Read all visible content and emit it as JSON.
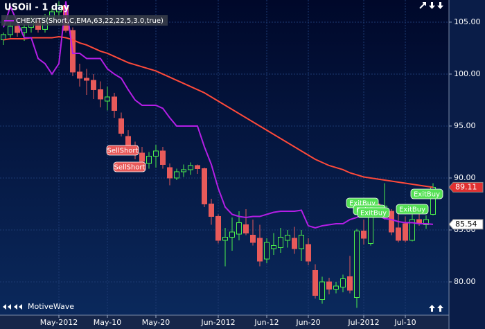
{
  "chart_data": {
    "type": "candlestick",
    "title": "USOil - 1 day",
    "branding": "MotiveWave",
    "categories": [
      null,
      null,
      null,
      null,
      null,
      null,
      null,
      null,
      "May-2012",
      null,
      null,
      null,
      null,
      null,
      null,
      "May-10",
      null,
      null,
      null,
      null,
      null,
      null,
      "May-20",
      null,
      null,
      null,
      null,
      null,
      null,
      null,
      null,
      "Jun-2012",
      null,
      null,
      null,
      null,
      null,
      null,
      "Jun-12",
      null,
      null,
      null,
      null,
      null,
      "Jun-20",
      null,
      null,
      null,
      null,
      null,
      null,
      null,
      "Jul-2012",
      null,
      null,
      null,
      null,
      null,
      "Jul-10",
      null,
      null,
      null,
      null
    ],
    "candles": {
      "open": [
        103.3,
        103.8,
        104.6,
        104.0,
        104.5,
        105.1,
        104.3,
        105.5,
        106.0,
        106.6,
        104.2,
        100.2,
        99.6,
        99.4,
        98.5,
        97.4,
        97.8,
        95.7,
        94.0,
        93.1,
        92.4,
        91.4,
        92.1,
        92.6,
        91.0,
        90.0,
        90.6,
        90.8,
        91.2,
        90.9,
        87.5,
        86.3,
        84.0,
        84.3,
        84.6,
        85.5,
        84.5,
        84.2,
        82.2,
        83.2,
        83.3,
        84.0,
        84.2,
        83.2,
        83.6,
        81.1,
        78.3,
        80.0,
        79.3,
        79.5,
        80.5,
        78.5,
        84.9,
        83.7,
        87.5,
        86.6,
        86.8,
        85.2,
        85.6,
        84.0,
        86.0,
        85.5,
        86.5
      ],
      "high": [
        104.0,
        105.2,
        105.0,
        104.8,
        105.6,
        105.4,
        105.8,
        106.3,
        107.0,
        107.0,
        104.5,
        101.0,
        100.5,
        100.0,
        99.3,
        98.8,
        98.2,
        96.3,
        94.6,
        93.5,
        93.0,
        92.5,
        93.2,
        93.0,
        91.4,
        90.9,
        91.3,
        91.5,
        91.3,
        91.0,
        88.0,
        86.5,
        85.2,
        86.2,
        86.8,
        87.0,
        86.0,
        85.5,
        84.2,
        84.7,
        85.2,
        85.0,
        85.3,
        85.0,
        84.2,
        81.7,
        80.5,
        80.4,
        80.0,
        80.7,
        82.5,
        85.1,
        86.0,
        87.1,
        88.0,
        89.5,
        87.0,
        87.3,
        86.3,
        86.5,
        87.0,
        86.4,
        89.5
      ],
      "low": [
        102.8,
        103.5,
        103.6,
        103.2,
        104.0,
        104.0,
        104.0,
        105.0,
        105.5,
        104.0,
        99.8,
        98.8,
        98.0,
        97.6,
        96.8,
        96.5,
        95.8,
        94.0,
        92.6,
        91.8,
        91.2,
        90.9,
        91.0,
        90.9,
        89.3,
        89.8,
        90.1,
        90.3,
        90.4,
        87.2,
        85.5,
        83.7,
        81.5,
        83.0,
        84.0,
        84.5,
        83.5,
        81.5,
        81.8,
        82.6,
        82.8,
        83.3,
        82.7,
        82.0,
        81.6,
        78.4,
        77.9,
        78.8,
        78.9,
        79.0,
        78.9,
        77.5,
        83.6,
        83.5,
        86.2,
        86.0,
        84.5,
        83.8,
        83.8,
        83.9,
        85.4,
        85.1,
        86.4
      ],
      "close": [
        103.8,
        104.6,
        104.0,
        104.5,
        105.1,
        104.3,
        105.5,
        106.0,
        106.6,
        104.2,
        100.2,
        99.6,
        99.4,
        98.5,
        97.6,
        97.8,
        96.5,
        94.3,
        93.1,
        92.4,
        91.6,
        92.1,
        92.6,
        91.3,
        90.0,
        90.6,
        90.8,
        91.2,
        90.9,
        87.5,
        86.3,
        84.0,
        84.3,
        84.8,
        85.7,
        84.7,
        83.8,
        82.0,
        83.8,
        83.5,
        84.3,
        84.5,
        83.2,
        84.5,
        82.0,
        78.7,
        80.0,
        79.3,
        79.6,
        80.3,
        79.2,
        84.9,
        84.2,
        86.8,
        86.6,
        87.3,
        84.8,
        84.0,
        84.0,
        86.0,
        85.6,
        86.0,
        89.1
      ]
    },
    "up_color": "#4cf04c",
    "down_color": "#e85a5a",
    "series": [
      {
        "color": "#ff4a3a",
        "values": [
          103.3,
          103.4,
          103.4,
          103.4,
          103.5,
          103.5,
          103.5,
          103.5,
          103.6,
          103.5,
          103.3,
          103.0,
          102.8,
          102.5,
          102.2,
          102.0,
          101.7,
          101.4,
          101.1,
          100.9,
          100.7,
          100.5,
          100.3,
          100.0,
          99.7,
          99.4,
          99.1,
          98.8,
          98.5,
          98.2,
          97.8,
          97.4,
          97.0,
          96.6,
          96.2,
          95.8,
          95.4,
          95.0,
          94.6,
          94.2,
          93.8,
          93.4,
          93.0,
          92.6,
          92.2,
          91.8,
          91.5,
          91.2,
          91.0,
          90.8,
          90.5,
          90.3,
          90.1,
          90.0,
          89.9,
          89.8,
          89.7,
          89.6,
          89.5,
          89.4,
          89.3,
          89.2,
          89.11
        ],
        "value_labels": [
          null,
          null,
          null,
          null,
          null,
          null,
          null,
          null,
          null,
          null,
          null,
          null,
          null,
          null,
          null,
          null,
          null,
          null,
          null,
          null,
          null,
          null,
          null,
          null,
          null,
          null,
          null,
          null,
          null,
          null,
          null,
          null,
          null,
          null,
          null,
          null,
          null,
          null,
          null,
          null,
          null,
          null,
          null,
          null,
          null,
          null,
          null,
          null,
          null,
          null,
          null,
          null,
          null,
          null,
          null,
          null,
          null,
          null,
          null,
          null,
          null,
          null,
          "89.11"
        ]
      },
      {
        "name": "CHEXITS(Short,C,EMA,63,22,22,5,3.0,true)",
        "color": "#b41ee6",
        "values": [
          104.5,
          106.5,
          105.0,
          103.5,
          103.5,
          101.5,
          101.0,
          100.0,
          101.0,
          107.0,
          102.0,
          102.0,
          101.5,
          101.5,
          101.5,
          100.5,
          100.0,
          99.6,
          98.5,
          97.5,
          97.0,
          97.0,
          97.0,
          96.7,
          95.8,
          95.0,
          95.0,
          95.0,
          95.0,
          93.0,
          91.3,
          89.0,
          87.2,
          86.5,
          86.3,
          86.2,
          86.3,
          86.3,
          86.5,
          86.7,
          86.8,
          86.8,
          86.8,
          86.9,
          85.4,
          85.2,
          85.4,
          85.5,
          85.6,
          85.6,
          86.0,
          86.2,
          86.6,
          86.4,
          86.4,
          86.1,
          86.0,
          85.8,
          85.7,
          85.7,
          85.6,
          85.6,
          85.54
        ],
        "value_labels": [
          null,
          null,
          null,
          null,
          null,
          null,
          null,
          null,
          null,
          null,
          null,
          null,
          null,
          null,
          null,
          null,
          null,
          null,
          null,
          null,
          null,
          null,
          null,
          null,
          null,
          null,
          null,
          null,
          null,
          null,
          null,
          null,
          null,
          null,
          null,
          null,
          null,
          null,
          null,
          null,
          null,
          null,
          null,
          null,
          null,
          null,
          null,
          null,
          null,
          null,
          null,
          null,
          null,
          null,
          null,
          null,
          null,
          null,
          null,
          null,
          null,
          null,
          "85.54"
        ]
      }
    ],
    "ylim": [
      76.8,
      107.13
    ],
    "yticks": [
      {
        "value": 80,
        "label": "80.00"
      },
      {
        "value": 85,
        "label": "85.00"
      },
      {
        "value": 90,
        "label": "90.00"
      },
      {
        "value": 95,
        "label": "95.00"
      },
      {
        "value": 100,
        "label": "100.00"
      },
      {
        "value": 105,
        "label": "105.00"
      }
    ],
    "grid": true,
    "annotations": [
      {
        "text": "SellShort"
      },
      {
        "text": "SellShort"
      },
      {
        "text": "ExitBuy"
      },
      {
        "text": "ExitBuy"
      },
      {
        "text": "ExitBuy"
      },
      {
        "text": "ExitBuy"
      },
      {
        "text": "ExitBuy"
      }
    ]
  }
}
